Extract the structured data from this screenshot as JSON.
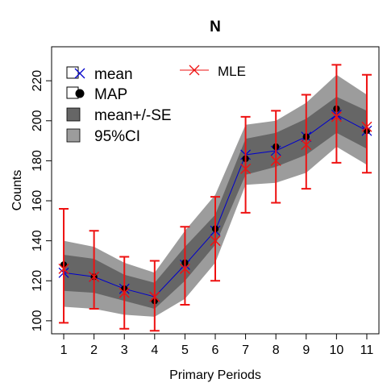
{
  "chart_data": {
    "type": "line",
    "title": "N",
    "xlabel": "Primary Periods",
    "ylabel": "Counts",
    "x": [
      1,
      2,
      3,
      4,
      5,
      6,
      7,
      8,
      9,
      10,
      11
    ],
    "x_ticks": [
      "1",
      "2",
      "3",
      "4",
      "5",
      "6",
      "7",
      "8",
      "9",
      "10",
      "11"
    ],
    "y_ticks": [
      "100",
      "120",
      "140",
      "160",
      "180",
      "200",
      "220"
    ],
    "xlim": [
      0.6,
      11.4
    ],
    "ylim": [
      93.5,
      237
    ],
    "legend_placement": "top-left",
    "series": [
      {
        "name": "mean",
        "values": [
          124,
          122,
          116,
          112,
          128,
          145,
          183,
          185,
          192,
          203,
          195
        ]
      },
      {
        "name": "MAP",
        "values": [
          128,
          122,
          116,
          110,
          129,
          146,
          181,
          187,
          192,
          206,
          195
        ]
      },
      {
        "name": "mean+/-SE",
        "lower": [
          115,
          114,
          110,
          106,
          120,
          138,
          173,
          177,
          183,
          194,
          186
        ],
        "upper": [
          133,
          131,
          123,
          119,
          137,
          153,
          191,
          194,
          201,
          212,
          205
        ]
      },
      {
        "name": "95%CI",
        "lower": [
          107,
          106,
          103,
          102,
          111,
          129,
          168,
          169,
          174,
          187,
          178
        ],
        "upper": [
          140,
          137,
          129,
          124,
          145,
          163,
          198,
          200,
          209,
          223,
          213
        ]
      },
      {
        "name": "MLE",
        "values": [
          126,
          122,
          114,
          112,
          126,
          140,
          176,
          180,
          188,
          202,
          197
        ],
        "ci_lower": [
          99,
          106,
          96,
          95,
          108,
          120,
          154,
          159,
          166,
          179,
          174
        ],
        "ci_upper": [
          156,
          145,
          132,
          130,
          147,
          162,
          202,
          205,
          213,
          228,
          223
        ]
      }
    ]
  },
  "colors": {
    "ci95": "#9c9c9c",
    "se": "#666666",
    "mean_line": "#0000cc",
    "map_point": "#000000",
    "mle": "#ee1111"
  }
}
